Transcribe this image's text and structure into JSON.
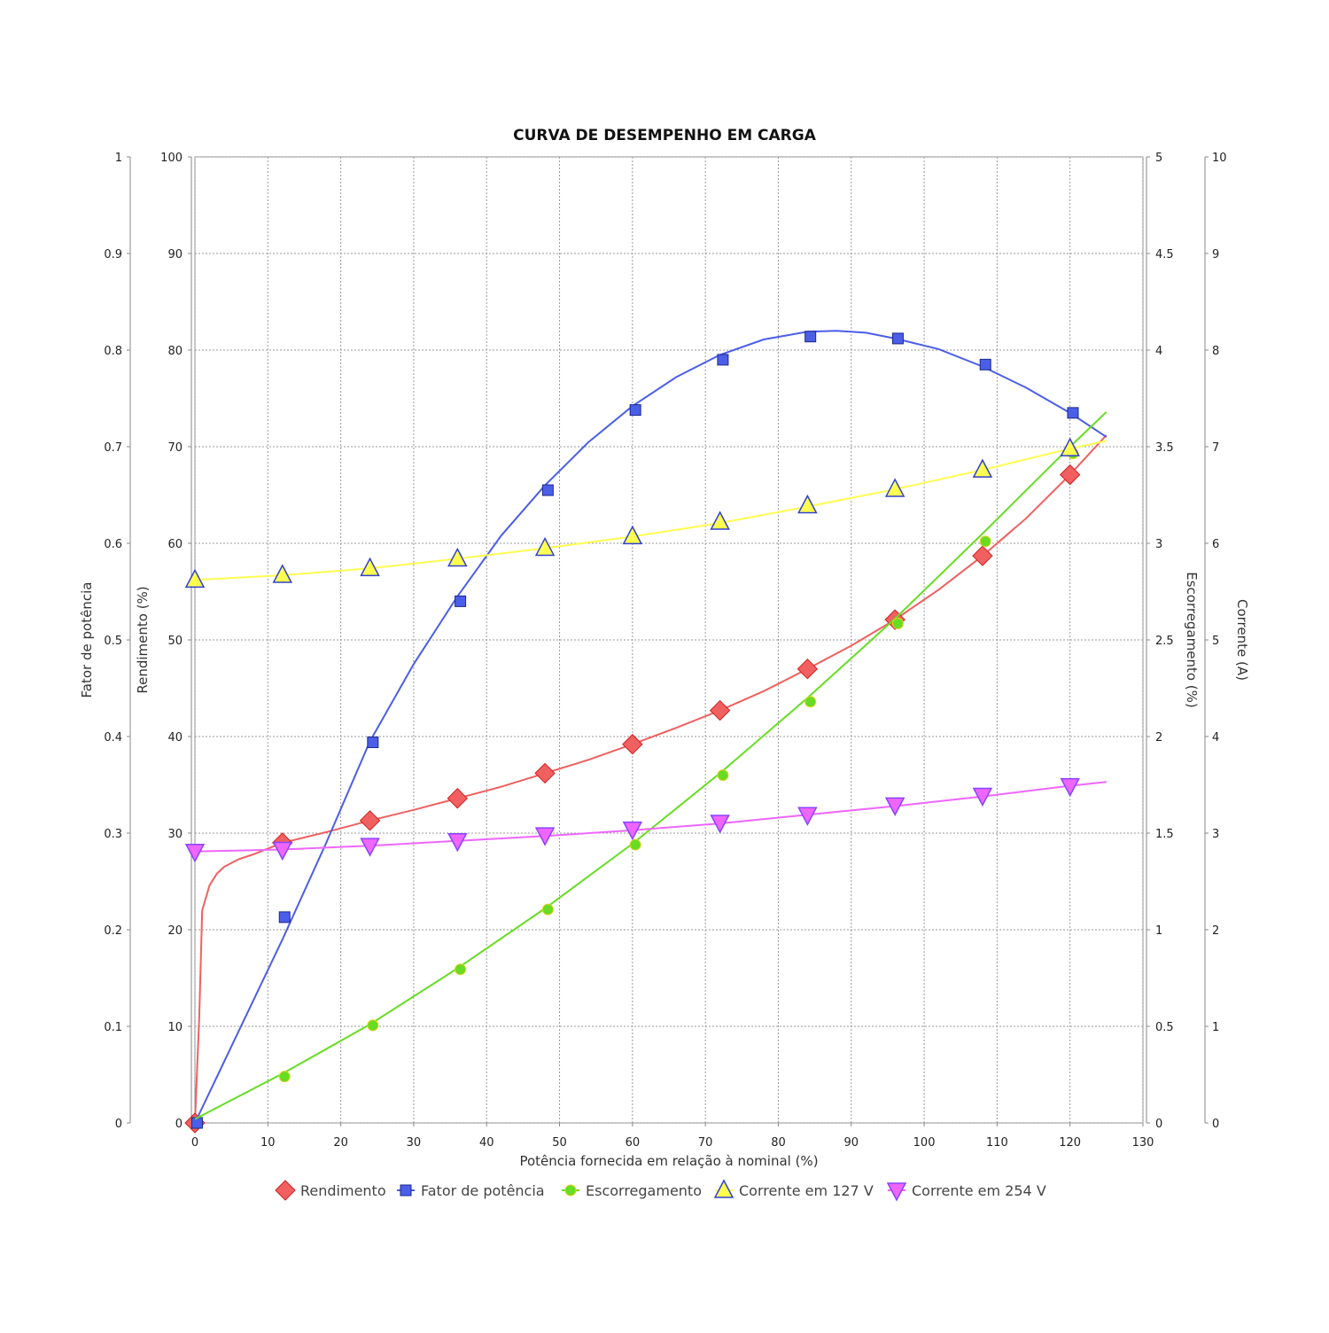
{
  "chart_data": {
    "type": "line",
    "title": "CURVA DE DESEMPENHO EM CARGA",
    "xlabel": "Potência fornecida em relação à nominal (%)",
    "xlim": [
      0,
      130
    ],
    "xticks": [
      0,
      10,
      20,
      30,
      40,
      50,
      60,
      70,
      80,
      90,
      100,
      110,
      120,
      130
    ],
    "grid": true,
    "legend_placement": "bottom-center",
    "axes": {
      "pf": {
        "label": "Fator de potência",
        "side": "left-outer",
        "range": [
          0,
          1
        ],
        "ticks": [
          "0",
          "0.1",
          "0.2",
          "0.3",
          "0.4",
          "0.5",
          "0.6",
          "0.7",
          "0.8",
          "0.9",
          "1"
        ]
      },
      "eff": {
        "label": "Rendimento (%)",
        "side": "left-inner",
        "range": [
          0,
          100
        ],
        "ticks": [
          "0",
          "10",
          "20",
          "30",
          "40",
          "50",
          "60",
          "70",
          "80",
          "90",
          "100"
        ]
      },
      "slip": {
        "label": "Escorregamento (%)",
        "side": "right-inner",
        "range": [
          0,
          5
        ],
        "ticks": [
          "0",
          "0.5",
          "1",
          "1.5",
          "2",
          "2.5",
          "3",
          "3.5",
          "4",
          "4.5",
          "5"
        ]
      },
      "cur": {
        "label": "Corrente (A)",
        "side": "right-outer",
        "range": [
          0,
          10
        ],
        "ticks": [
          "0",
          "1",
          "2",
          "3",
          "4",
          "5",
          "6",
          "7",
          "8",
          "9",
          "10"
        ]
      }
    },
    "series": [
      {
        "name": "Rendimento",
        "axis": "eff",
        "color": "#f06060",
        "edge": "#d02020",
        "marker": "diamond",
        "points": [
          [
            0,
            0
          ],
          [
            12,
            29
          ],
          [
            24,
            31.3
          ],
          [
            36,
            33.6
          ],
          [
            48,
            36.2
          ],
          [
            60,
            39.2
          ],
          [
            72,
            42.7
          ],
          [
            84,
            47
          ],
          [
            96,
            52.1
          ],
          [
            108,
            58.7
          ],
          [
            120,
            67.1
          ]
        ],
        "curve": [
          [
            0,
            0
          ],
          [
            0.6,
            11
          ],
          [
            1,
            22
          ],
          [
            2,
            24.6
          ],
          [
            3,
            25.8
          ],
          [
            4,
            26.5
          ],
          [
            6,
            27.3
          ],
          [
            8,
            27.8
          ],
          [
            12,
            29
          ],
          [
            18,
            30.1
          ],
          [
            24,
            31.3
          ],
          [
            30,
            32.4
          ],
          [
            36,
            33.6
          ],
          [
            42,
            34.8
          ],
          [
            48,
            36.2
          ],
          [
            54,
            37.6
          ],
          [
            60,
            39.2
          ],
          [
            66,
            40.9
          ],
          [
            72,
            42.7
          ],
          [
            78,
            44.7
          ],
          [
            84,
            47
          ],
          [
            90,
            49.4
          ],
          [
            96,
            52.1
          ],
          [
            102,
            55.2
          ],
          [
            108,
            58.7
          ],
          [
            114,
            62.6
          ],
          [
            120,
            67.1
          ],
          [
            125,
            71.2
          ]
        ]
      },
      {
        "name": "Fator de potência",
        "axis": "pf",
        "color": "#4b5ee8",
        "edge": "#1b2a8a",
        "marker": "square",
        "points": [
          [
            0.3,
            0
          ],
          [
            12.3,
            0.213
          ],
          [
            24.4,
            0.394
          ],
          [
            36.4,
            0.54
          ],
          [
            48.4,
            0.655
          ],
          [
            60.4,
            0.738
          ],
          [
            72.4,
            0.79
          ],
          [
            84.4,
            0.814
          ],
          [
            96.4,
            0.812
          ],
          [
            108.4,
            0.785
          ],
          [
            120.4,
            0.735
          ]
        ],
        "curve": [
          [
            0,
            0
          ],
          [
            12,
            0.19
          ],
          [
            18,
            0.29
          ],
          [
            24,
            0.395
          ],
          [
            30,
            0.475
          ],
          [
            36,
            0.545
          ],
          [
            42,
            0.608
          ],
          [
            48,
            0.66
          ],
          [
            54,
            0.705
          ],
          [
            60,
            0.742
          ],
          [
            66,
            0.772
          ],
          [
            72,
            0.795
          ],
          [
            78,
            0.811
          ],
          [
            84,
            0.819
          ],
          [
            88,
            0.82
          ],
          [
            92,
            0.818
          ],
          [
            96,
            0.812
          ],
          [
            102,
            0.801
          ],
          [
            108,
            0.783
          ],
          [
            114,
            0.761
          ],
          [
            120,
            0.735
          ],
          [
            125,
            0.71
          ]
        ]
      },
      {
        "name": "Escorregamento",
        "axis": "slip",
        "color": "#66dd22",
        "edge": "#e8d020",
        "marker": "circle",
        "points": [
          [
            12.3,
            0.24
          ],
          [
            24.4,
            0.505
          ],
          [
            36.4,
            0.795
          ],
          [
            48.4,
            1.105
          ],
          [
            60.4,
            1.44
          ],
          [
            72.4,
            1.8
          ],
          [
            84.4,
            2.18
          ],
          [
            96.4,
            2.585
          ],
          [
            108.4,
            3.01
          ],
          [
            120.4,
            3.465
          ]
        ],
        "curve": [
          [
            0,
            0.02
          ],
          [
            12,
            0.255
          ],
          [
            24,
            0.51
          ],
          [
            36,
            0.8
          ],
          [
            48,
            1.11
          ],
          [
            60,
            1.445
          ],
          [
            72,
            1.81
          ],
          [
            84,
            2.2
          ],
          [
            96,
            2.61
          ],
          [
            108,
            3.05
          ],
          [
            120,
            3.5
          ],
          [
            125,
            3.68
          ]
        ]
      },
      {
        "name": "Corrente em 127 V",
        "axis": "cur",
        "color": "#ffff50",
        "edge": "#3040d0",
        "marker": "triangle-up",
        "points": [
          [
            0,
            5.62
          ],
          [
            12,
            5.67
          ],
          [
            24,
            5.74
          ],
          [
            36,
            5.84
          ],
          [
            48,
            5.95
          ],
          [
            60,
            6.07
          ],
          [
            72,
            6.22
          ],
          [
            84,
            6.39
          ],
          [
            96,
            6.56
          ],
          [
            108,
            6.76
          ],
          [
            120,
            6.98
          ]
        ],
        "curve": [
          [
            0,
            5.62
          ],
          [
            12,
            5.67
          ],
          [
            24,
            5.74
          ],
          [
            36,
            5.84
          ],
          [
            48,
            5.95
          ],
          [
            60,
            6.07
          ],
          [
            72,
            6.21
          ],
          [
            84,
            6.38
          ],
          [
            96,
            6.56
          ],
          [
            108,
            6.76
          ],
          [
            120,
            6.98
          ],
          [
            125,
            7.06
          ]
        ]
      },
      {
        "name": "Corrente em 254 V",
        "axis": "cur",
        "color": "#ee66ff",
        "edge": "#8844ff",
        "marker": "triangle-down",
        "points": [
          [
            0,
            2.81
          ],
          [
            12,
            2.83
          ],
          [
            24,
            2.87
          ],
          [
            36,
            2.92
          ],
          [
            48,
            2.98
          ],
          [
            60,
            3.04
          ],
          [
            72,
            3.11
          ],
          [
            84,
            3.19
          ],
          [
            96,
            3.29
          ],
          [
            108,
            3.39
          ],
          [
            120,
            3.49
          ]
        ],
        "curve": [
          [
            0,
            2.81
          ],
          [
            12,
            2.83
          ],
          [
            24,
            2.87
          ],
          [
            36,
            2.92
          ],
          [
            48,
            2.97
          ],
          [
            60,
            3.03
          ],
          [
            72,
            3.1
          ],
          [
            84,
            3.19
          ],
          [
            96,
            3.28
          ],
          [
            108,
            3.38
          ],
          [
            120,
            3.49
          ],
          [
            125,
            3.53
          ]
        ]
      }
    ]
  }
}
